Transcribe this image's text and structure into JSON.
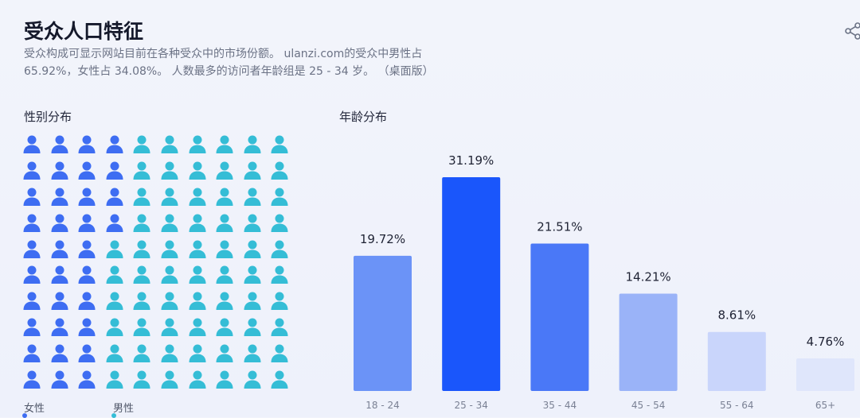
{
  "header": {
    "title": "受众人口特征",
    "description": "受众构成可显示网站目前在各种受众中的市场份额。 ulanzi.com的受众中男性占 65.92%，女性占 34.08%。 人数最多的访问者年龄组是 25 - 34 岁。 （桌面版）",
    "share_icon": "share-icon"
  },
  "gender": {
    "section_title": "性别分布",
    "icons_total": 100,
    "female_icons": 34,
    "female_share_percent": 34.08,
    "male_share_percent": 65.92,
    "female_color": "#3e6df2",
    "male_color": "#35bdd6",
    "legend": [
      {
        "label": "女性",
        "color": "#3e6df2"
      },
      {
        "label": "男性",
        "color": "#35bdd6"
      }
    ]
  },
  "chart_data": {
    "type": "bar",
    "title": "年龄分布",
    "categories": [
      "18 - 24",
      "25 - 34",
      "35 - 44",
      "45 - 54",
      "55 - 64",
      "65+"
    ],
    "values": [
      19.72,
      31.19,
      21.51,
      14.21,
      8.61,
      4.76
    ],
    "value_labels": [
      "19.72%",
      "31.19%",
      "21.51%",
      "14.21%",
      "8.61%",
      "4.76%"
    ],
    "colors": [
      "#6b93f7",
      "#1a56fb",
      "#4a78f7",
      "#9ab3f8",
      "#c9d5fb",
      "#dfe6fb"
    ],
    "ylim": [
      0,
      31.19
    ],
    "grid": false
  }
}
